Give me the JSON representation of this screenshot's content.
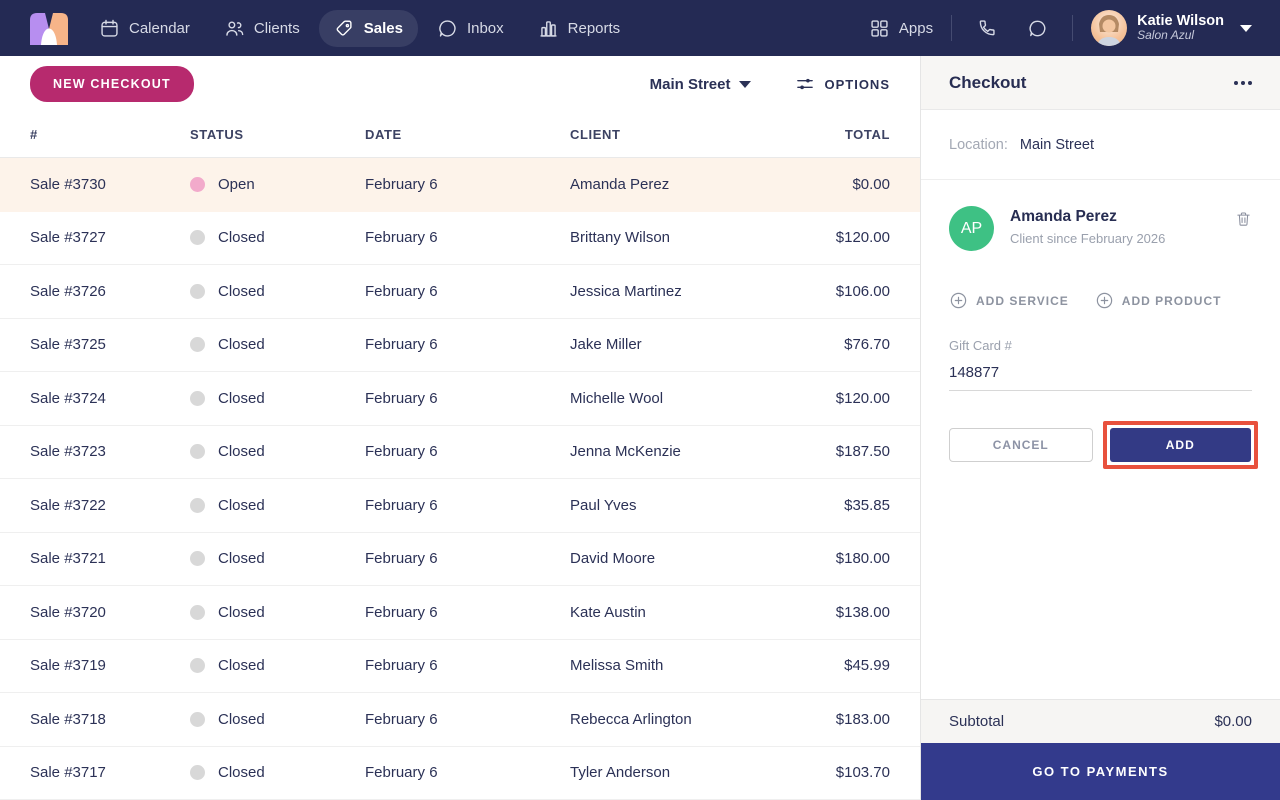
{
  "nav": {
    "items": [
      {
        "label": "Calendar",
        "icon": "calendar-icon",
        "active": false
      },
      {
        "label": "Clients",
        "icon": "clients-icon",
        "active": false
      },
      {
        "label": "Sales",
        "icon": "sales-tag-icon",
        "active": true
      },
      {
        "label": "Inbox",
        "icon": "inbox-icon",
        "active": false
      },
      {
        "label": "Reports",
        "icon": "reports-icon",
        "active": false
      }
    ],
    "apps_label": "Apps",
    "user": {
      "name": "Katie Wilson",
      "org": "Salon Azul"
    }
  },
  "toolbar": {
    "new_checkout_label": "NEW CHECKOUT",
    "location_filter": "Main Street",
    "options_label": "OPTIONS"
  },
  "table": {
    "headers": [
      "#",
      "STATUS",
      "DATE",
      "CLIENT",
      "TOTAL"
    ],
    "rows": [
      {
        "id": "Sale #3730",
        "status": "Open",
        "date": "February 6",
        "client": "Amanda Perez",
        "total": "$0.00"
      },
      {
        "id": "Sale #3727",
        "status": "Closed",
        "date": "February 6",
        "client": "Brittany Wilson",
        "total": "$120.00"
      },
      {
        "id": "Sale #3726",
        "status": "Closed",
        "date": "February 6",
        "client": "Jessica Martinez",
        "total": "$106.00"
      },
      {
        "id": "Sale #3725",
        "status": "Closed",
        "date": "February 6",
        "client": "Jake Miller",
        "total": "$76.70"
      },
      {
        "id": "Sale #3724",
        "status": "Closed",
        "date": "February 6",
        "client": "Michelle Wool",
        "total": "$120.00"
      },
      {
        "id": "Sale #3723",
        "status": "Closed",
        "date": "February 6",
        "client": "Jenna McKenzie",
        "total": "$187.50"
      },
      {
        "id": "Sale #3722",
        "status": "Closed",
        "date": "February 6",
        "client": "Paul Yves",
        "total": "$35.85"
      },
      {
        "id": "Sale #3721",
        "status": "Closed",
        "date": "February 6",
        "client": "David Moore",
        "total": "$180.00"
      },
      {
        "id": "Sale #3720",
        "status": "Closed",
        "date": "February 6",
        "client": "Kate Austin",
        "total": "$138.00"
      },
      {
        "id": "Sale #3719",
        "status": "Closed",
        "date": "February 6",
        "client": "Melissa Smith",
        "total": "$45.99"
      },
      {
        "id": "Sale #3718",
        "status": "Closed",
        "date": "February 6",
        "client": "Rebecca Arlington",
        "total": "$183.00"
      },
      {
        "id": "Sale #3717",
        "status": "Closed",
        "date": "February 6",
        "client": "Tyler Anderson",
        "total": "$103.70"
      }
    ]
  },
  "checkout": {
    "title": "Checkout",
    "location_label": "Location:",
    "location_value": "Main Street",
    "client": {
      "initials": "AP",
      "name": "Amanda Perez",
      "since": "Client since February 2026"
    },
    "add_service_label": "ADD SERVICE",
    "add_product_label": "ADD PRODUCT",
    "gift_card": {
      "label": "Gift Card #",
      "value": "148877"
    },
    "cancel_label": "CANCEL",
    "add_label": "ADD",
    "subtotal_label": "Subtotal",
    "subtotal_value": "$0.00",
    "go_to_payments_label": "GO TO PAYMENTS"
  },
  "colors": {
    "nav_bg": "#242a54",
    "accent_magenta": "#b72a6e",
    "accent_indigo": "#333a8c",
    "highlight_outline_red": "#e8513d",
    "open_status_pink": "#f2aacb",
    "closed_status_gray": "#d8d8d8",
    "client_avatar_green": "#3ec184",
    "open_row_bg": "#fdf3ea"
  }
}
